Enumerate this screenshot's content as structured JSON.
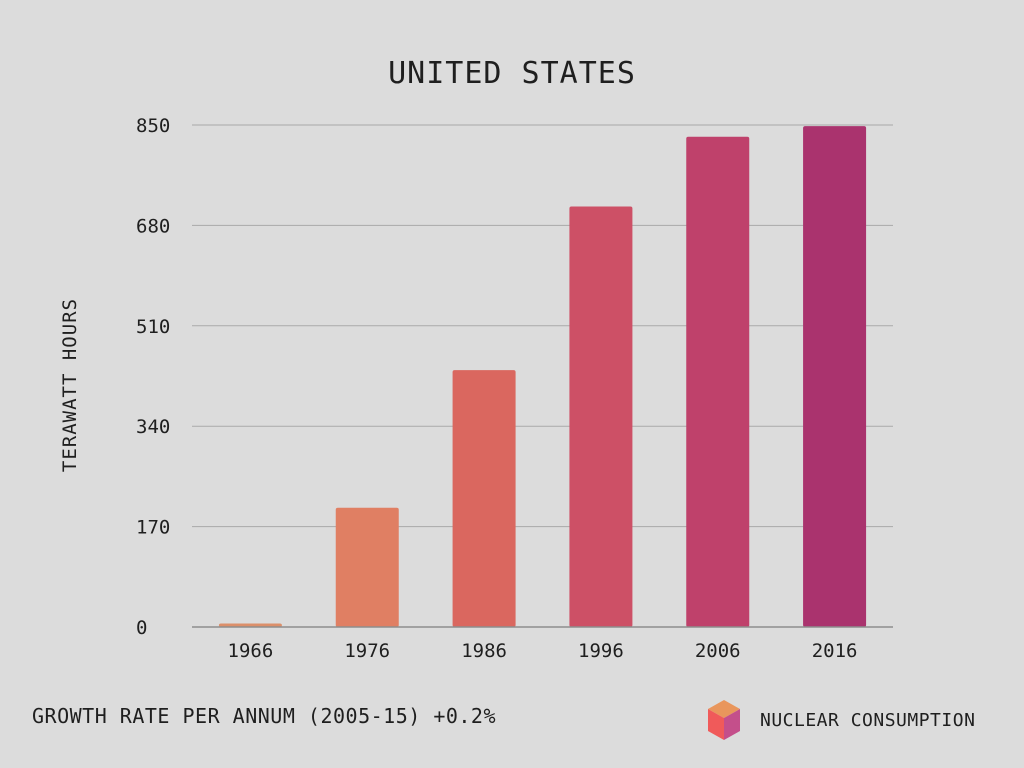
{
  "chart_data": {
    "type": "bar",
    "title": "UNITED STATES",
    "xlabel": "",
    "ylabel": "TERAWATT HOURS",
    "categories": [
      "1966",
      "1976",
      "1986",
      "1996",
      "2006",
      "2016"
    ],
    "series": [
      {
        "name": "NUCLEAR CONSUMPTION",
        "values": [
          6,
          202,
          435,
          712,
          830,
          848
        ]
      }
    ],
    "ylim": [
      0,
      850
    ],
    "yticks": [
      "0",
      "170",
      "340",
      "510",
      "680",
      "850"
    ],
    "grid": true,
    "legend_position": "bottom-right",
    "bar_colors": [
      "#dc8f6a",
      "#e07f63",
      "#da675f",
      "#cd5066",
      "#bf416b",
      "#aa336e"
    ],
    "gridline_color": "#a9a9a9",
    "axis_color": "#8d8d8d"
  },
  "footer": {
    "growth_text": "GROWTH RATE PER ANNUM (2005-15) +0.2%"
  },
  "legend": {
    "label": "NUCLEAR CONSUMPTION",
    "icon": "cube-icon"
  }
}
